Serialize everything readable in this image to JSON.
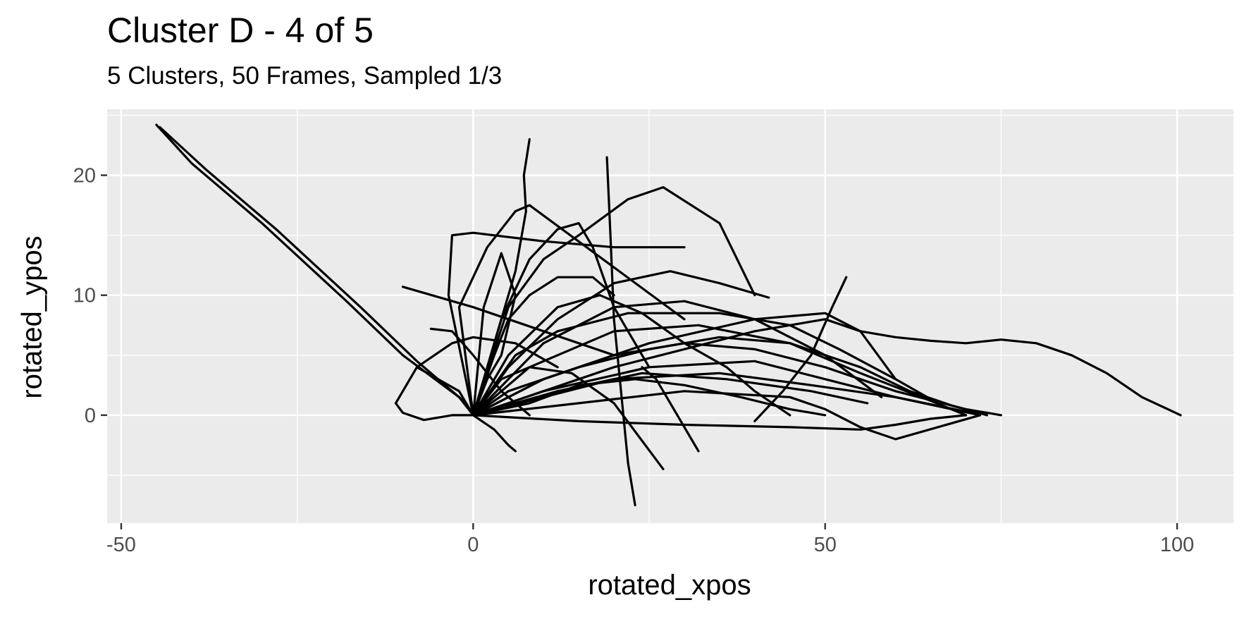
{
  "chart_data": {
    "type": "line",
    "title": "Cluster D - 4 of 5",
    "subtitle": "5 Clusters, 50 Frames, Sampled 1/3",
    "xlabel": "rotated_xpos",
    "ylabel": "rotated_ypos",
    "xlim": [
      -52,
      108
    ],
    "ylim": [
      -9,
      25.5
    ],
    "x_ticks": [
      -50,
      0,
      50,
      100
    ],
    "y_ticks": [
      0,
      10,
      20
    ],
    "x_tick_labels": [
      "-50",
      "0",
      "50",
      "100"
    ],
    "y_tick_labels": [
      "0",
      "10",
      "20"
    ],
    "grid": true,
    "line_color": "#000000",
    "panel_color": "#ebebeb",
    "grid_color": "#ffffff",
    "series": [
      {
        "x": [
          -45,
          -40,
          -30,
          -18,
          -10,
          -2,
          0
        ],
        "y": [
          24.2,
          21,
          16,
          9.5,
          5,
          1.5,
          0
        ]
      },
      {
        "x": [
          -44.5,
          -38,
          -28,
          -16,
          -8,
          -1,
          0
        ],
        "y": [
          24.0,
          20.5,
          15.5,
          9,
          4.5,
          1,
          0
        ]
      },
      {
        "x": [
          0,
          5,
          15,
          25,
          35,
          45,
          55,
          62,
          68,
          73
        ],
        "y": [
          0,
          2,
          4,
          5.5,
          6.5,
          6,
          4,
          2,
          0.8,
          0
        ]
      },
      {
        "x": [
          0,
          10,
          20,
          30,
          40,
          50,
          60,
          70,
          75
        ],
        "y": [
          0,
          3,
          5,
          6,
          5.5,
          4,
          2,
          0.5,
          0
        ]
      },
      {
        "x": [
          0,
          10,
          25,
          40,
          50,
          60,
          70,
          72
        ],
        "y": [
          0,
          2,
          4,
          4.5,
          3,
          1.5,
          0.3,
          0
        ]
      },
      {
        "x": [
          0,
          10,
          20,
          35,
          48,
          60,
          68,
          72
        ],
        "y": [
          0,
          1.5,
          3,
          3.5,
          2.5,
          1.5,
          0.5,
          0
        ]
      },
      {
        "x": [
          0,
          8,
          20,
          32,
          45,
          55,
          65,
          70
        ],
        "y": [
          0,
          4,
          7,
          7.5,
          6,
          3.5,
          1.2,
          0
        ]
      },
      {
        "x": [
          0,
          15,
          30,
          45,
          55,
          60,
          65,
          70
        ],
        "y": [
          0,
          -0.5,
          -0.8,
          -1,
          -1.2,
          -0.8,
          -0.3,
          0
        ]
      },
      {
        "x": [
          0,
          15,
          30,
          45,
          50,
          55,
          60,
          66,
          72
        ],
        "y": [
          0,
          1,
          2,
          1.5,
          0.5,
          -1,
          -2,
          -1,
          0
        ]
      },
      {
        "x": [
          0,
          10,
          25,
          40,
          50,
          55,
          60
        ],
        "y": [
          0,
          3,
          6,
          8,
          8.5,
          7,
          3
        ]
      },
      {
        "x": [
          0,
          6,
          12,
          22,
          35,
          45,
          52,
          60,
          66
        ],
        "y": [
          0,
          5,
          7,
          8.5,
          8.5,
          7.5,
          5.5,
          3,
          1
        ]
      },
      {
        "x": [
          0,
          10,
          20,
          30,
          40,
          50,
          55,
          60,
          65,
          70,
          75,
          80,
          85,
          90,
          95,
          100.5
        ],
        "y": [
          0,
          2,
          4,
          5.5,
          7,
          8,
          7,
          6.5,
          6.2,
          6,
          6.3,
          6,
          5,
          3.5,
          1.5,
          0
        ]
      },
      {
        "x": [
          -10,
          0,
          10,
          20
        ],
        "y": [
          10.7,
          9,
          7,
          5
        ]
      },
      {
        "x": [
          -6,
          -3,
          0,
          4,
          8
        ],
        "y": [
          7.2,
          7,
          5,
          2,
          0
        ]
      },
      {
        "x": [
          -11,
          -10,
          -7,
          -3,
          0,
          3,
          5,
          6
        ],
        "y": [
          1,
          0.2,
          -0.4,
          0,
          0,
          -1.2,
          -2.5,
          -3
        ]
      },
      {
        "x": [
          0,
          -2,
          -8,
          -11,
          -8,
          -3,
          0,
          6,
          12
        ],
        "y": [
          0,
          2,
          4,
          1,
          4,
          6,
          6.5,
          6,
          4
        ]
      },
      {
        "x": [
          0,
          -3.5,
          -3,
          0,
          10,
          20,
          30
        ],
        "y": [
          0,
          10,
          15,
          15.2,
          14.5,
          14,
          14
        ]
      },
      {
        "x": [
          0,
          -2,
          2,
          6,
          8,
          30
        ],
        "y": [
          0,
          9,
          14,
          17,
          17.5,
          8
        ]
      },
      {
        "x": [
          0,
          3,
          6,
          7.5,
          7.2,
          8
        ],
        "y": [
          0,
          6,
          12,
          17,
          20,
          23
        ]
      },
      {
        "x": [
          0,
          4,
          8,
          12,
          15,
          17,
          20,
          25
        ],
        "y": [
          0,
          8,
          13,
          15.5,
          16,
          14,
          9,
          4
        ]
      },
      {
        "x": [
          19,
          19.5,
          20,
          21,
          22,
          23
        ],
        "y": [
          21.5,
          15,
          8,
          2,
          -4,
          -7.5
        ]
      },
      {
        "x": [
          0,
          5,
          10,
          15,
          22,
          27,
          35,
          40
        ],
        "y": [
          0,
          9,
          13,
          15,
          18,
          19,
          16,
          10
        ]
      },
      {
        "x": [
          0,
          3,
          5,
          8,
          12,
          17,
          20
        ],
        "y": [
          0,
          5,
          8,
          10,
          11.5,
          11.5,
          10
        ]
      },
      {
        "x": [
          0,
          5,
          12,
          20,
          28,
          35,
          42
        ],
        "y": [
          0,
          4,
          8,
          11,
          12,
          11,
          9.8
        ]
      },
      {
        "x": [
          0,
          4,
          8,
          14,
          20,
          27
        ],
        "y": [
          0,
          3,
          4,
          3.5,
          1,
          -4.5
        ]
      },
      {
        "x": [
          24,
          26,
          28,
          30,
          32
        ],
        "y": [
          4,
          3,
          1,
          -1,
          -3
        ]
      },
      {
        "x": [
          0,
          5,
          12,
          18,
          24,
          30,
          36,
          40,
          45
        ],
        "y": [
          0,
          5,
          9,
          10,
          8.5,
          6,
          4,
          2,
          0
        ]
      },
      {
        "x": [
          0,
          2,
          4,
          6,
          4,
          1.5,
          0
        ],
        "y": [
          0,
          3,
          5,
          10,
          13.5,
          9,
          0
        ]
      },
      {
        "x": [
          0,
          8,
          15,
          23,
          30,
          38,
          45,
          50
        ],
        "y": [
          0,
          1,
          2.5,
          3,
          2.5,
          1.5,
          0.5,
          0
        ]
      },
      {
        "x": [
          40,
          44,
          48,
          51,
          53
        ],
        "y": [
          -0.5,
          2,
          5,
          9,
          11.5
        ]
      },
      {
        "x": [
          0,
          10,
          20,
          30,
          40,
          50,
          58
        ],
        "y": [
          0,
          6,
          9,
          9.5,
          8,
          5,
          1.5
        ]
      },
      {
        "x": [
          0,
          12,
          24,
          36,
          48,
          56
        ],
        "y": [
          0,
          2,
          3.5,
          3,
          2,
          1
        ]
      }
    ]
  }
}
